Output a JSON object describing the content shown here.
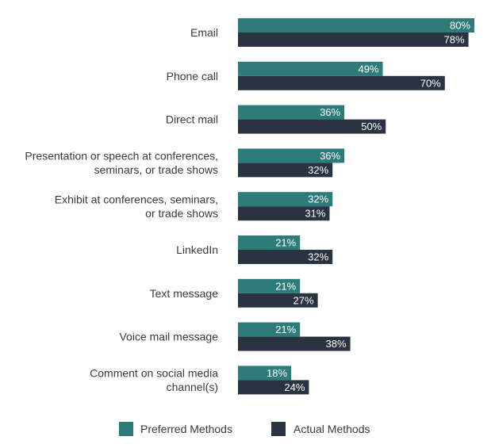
{
  "chart_data": {
    "type": "bar",
    "orientation": "horizontal",
    "categories": [
      [
        "Email"
      ],
      [
        "Phone call"
      ],
      [
        "Direct mail"
      ],
      [
        "Presentation or speech at conferences,",
        "seminars, or trade shows"
      ],
      [
        "Exhibit at conferences, seminars,",
        "or trade shows"
      ],
      [
        "LinkedIn"
      ],
      [
        "Text message"
      ],
      [
        "Voice mail message"
      ],
      [
        "Comment on social media",
        "channel(s)"
      ]
    ],
    "series": [
      {
        "name": "Preferred Methods",
        "color": "#2e7c7a",
        "values": [
          80,
          49,
          36,
          36,
          32,
          21,
          21,
          21,
          18
        ]
      },
      {
        "name": "Actual Methods",
        "color": "#2a3340",
        "values": [
          78,
          70,
          50,
          32,
          31,
          32,
          27,
          38,
          24
        ]
      }
    ],
    "value_suffix": "%",
    "xlim": [
      0,
      80
    ],
    "grid": false,
    "legend_position": "bottom"
  }
}
